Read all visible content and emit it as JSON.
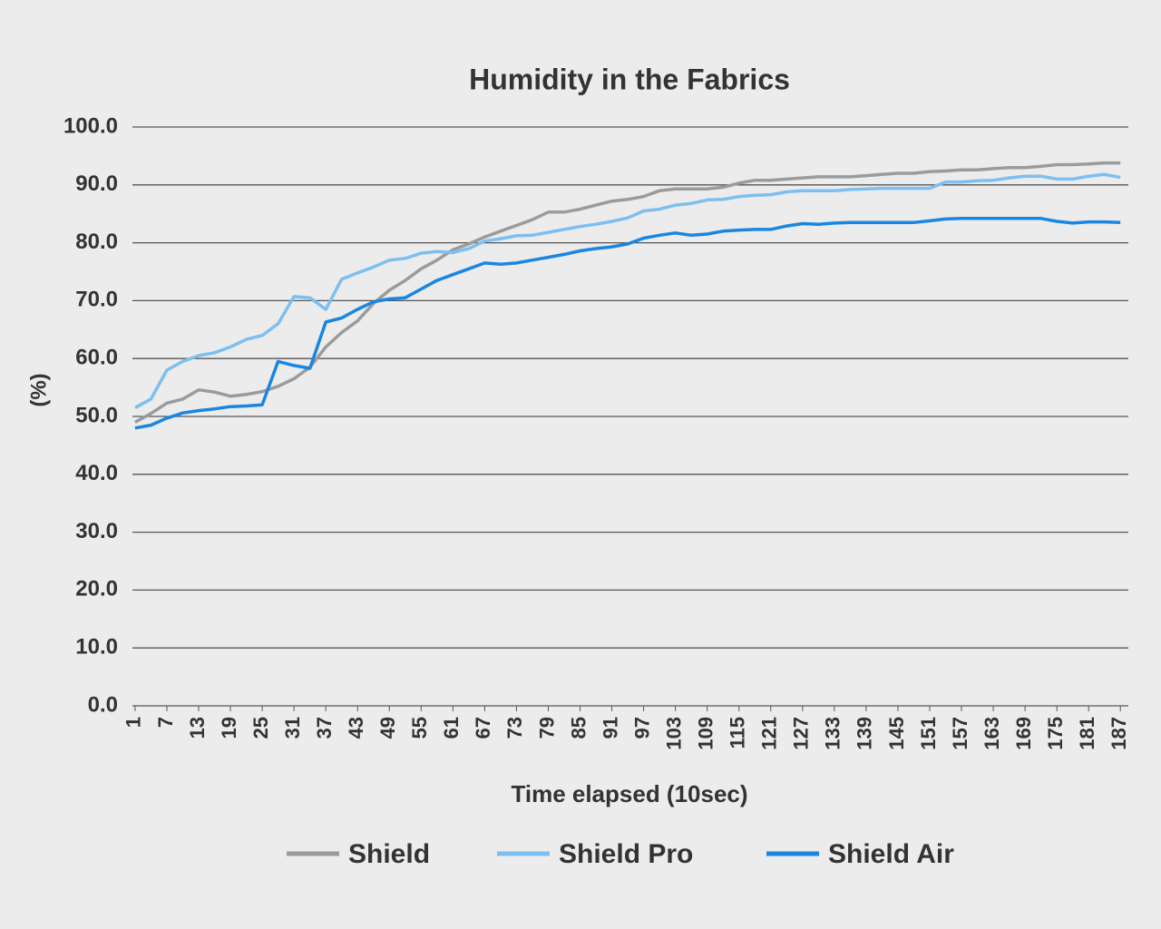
{
  "chart_data": {
    "type": "line",
    "title": "Humidity in the Fabrics",
    "xlabel": "Time elapsed (10sec",
    "ylabel": "(%)",
    "x_label_text": "Time elapsed (10sec)",
    "x": [
      1,
      4,
      7,
      10,
      13,
      16,
      19,
      22,
      25,
      28,
      31,
      34,
      37,
      40,
      43,
      46,
      49,
      52,
      55,
      58,
      61,
      64,
      67,
      70,
      73,
      76,
      79,
      82,
      85,
      88,
      91,
      94,
      97,
      100,
      103,
      106,
      109,
      112,
      115,
      118,
      121,
      124,
      127,
      130,
      133,
      136,
      139,
      142,
      145,
      148,
      151,
      154,
      157,
      160,
      163,
      166,
      169,
      172,
      175,
      178,
      181,
      184,
      187
    ],
    "xlim": [
      0.5,
      188.5
    ],
    "xticks": [
      1,
      7,
      13,
      19,
      25,
      31,
      37,
      43,
      49,
      55,
      61,
      67,
      73,
      79,
      85,
      91,
      97,
      103,
      109,
      115,
      121,
      127,
      133,
      139,
      145,
      151,
      157,
      163,
      169,
      175,
      181,
      187
    ],
    "ylim": [
      0,
      100
    ],
    "yticks": [
      {
        "value": 0,
        "label": "0.0"
      },
      {
        "value": 10,
        "label": "10.0"
      },
      {
        "value": 20,
        "label": "20.0"
      },
      {
        "value": 30,
        "label": "30.0"
      },
      {
        "value": 40,
        "label": "40.0"
      },
      {
        "value": 50,
        "label": "50.0"
      },
      {
        "value": 60,
        "label": "60.0"
      },
      {
        "value": 70,
        "label": "70.0"
      },
      {
        "value": 80,
        "label": "80.0"
      },
      {
        "value": 90,
        "label": "90.0"
      },
      {
        "value": 100,
        "label": "100.0"
      }
    ],
    "grid": true,
    "legend": "bottom",
    "series": [
      {
        "name": "Shield",
        "color": "#9b9b9b",
        "values": [
          49,
          50.5,
          52.3,
          53,
          54.6,
          54.2,
          53.5,
          53.8,
          54.3,
          55.2,
          56.5,
          58.5,
          62,
          64.5,
          66.5,
          69.5,
          71.8,
          73.5,
          75.5,
          77,
          78.8,
          79.8,
          81,
          82,
          83,
          84,
          85.3,
          85.3,
          85.8,
          86.5,
          87.2,
          87.5,
          88,
          89,
          89.3,
          89.3,
          89.3,
          89.6,
          90.3,
          90.8,
          90.8,
          91,
          91.2,
          91.4,
          91.4,
          91.4,
          91.6,
          91.8,
          92,
          92,
          92.3,
          92.4,
          92.6,
          92.6,
          92.8,
          93,
          93,
          93.2,
          93.5,
          93.5,
          93.6,
          93.8,
          93.8
        ]
      },
      {
        "name": "Shield Pro",
        "color": "#7dbff0",
        "values": [
          51.5,
          53,
          58,
          59.5,
          60.5,
          61,
          62,
          63.3,
          64,
          66,
          70.7,
          70.5,
          68.5,
          73.7,
          74.8,
          75.8,
          77,
          77.3,
          78.2,
          78.5,
          78.3,
          79,
          80.3,
          80.7,
          81.2,
          81.3,
          81.8,
          82.3,
          82.8,
          83.2,
          83.7,
          84.3,
          85.5,
          85.8,
          86.5,
          86.8,
          87.4,
          87.5,
          88,
          88.2,
          88.3,
          88.8,
          89,
          89,
          89,
          89.2,
          89.3,
          89.4,
          89.4,
          89.4,
          89.4,
          90.5,
          90.5,
          90.7,
          90.8,
          91.2,
          91.5,
          91.5,
          91,
          91,
          91.5,
          91.8,
          91.3
        ]
      },
      {
        "name": "Shield Air",
        "color": "#1a86e0",
        "values": [
          48,
          48.5,
          49.7,
          50.6,
          51,
          51.3,
          51.7,
          51.8,
          52,
          59.5,
          58.8,
          58.3,
          66.3,
          67,
          68.5,
          69.8,
          70.3,
          70.5,
          72,
          73.5,
          74.5,
          75.5,
          76.5,
          76.3,
          76.5,
          77,
          77.5,
          78,
          78.6,
          79,
          79.3,
          79.8,
          80.8,
          81.3,
          81.7,
          81.3,
          81.5,
          82,
          82.2,
          82.3,
          82.3,
          82.9,
          83.3,
          83.2,
          83.4,
          83.5,
          83.5,
          83.5,
          83.5,
          83.5,
          83.8,
          84.1,
          84.2,
          84.2,
          84.2,
          84.2,
          84.2,
          84.2,
          83.7,
          83.4,
          83.6,
          83.6,
          83.5
        ]
      }
    ]
  }
}
